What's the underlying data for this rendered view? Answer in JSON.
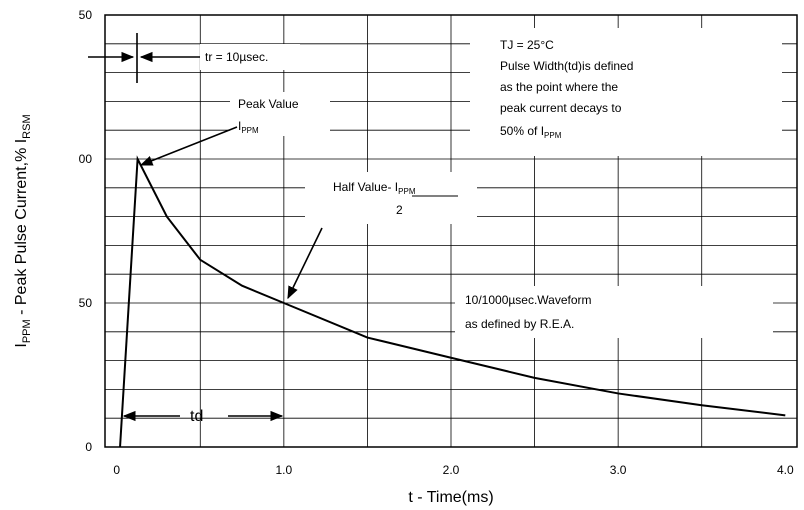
{
  "chart_data": {
    "type": "line",
    "xlabel": "t - Time(ms)",
    "ylabel": [
      "I",
      "PPM",
      " - Peak Pulse Current,% I",
      "RSM"
    ],
    "series": [
      {
        "color": "#000000",
        "x": [
          0.02,
          0.125,
          0.3,
          0.5,
          0.75,
          1.0,
          1.5,
          2.0,
          2.5,
          3.0,
          3.5,
          4.0
        ],
        "values": [
          0,
          100,
          80,
          65,
          56,
          50,
          38,
          31,
          24,
          18.6,
          14.5,
          11
        ]
      }
    ],
    "xlim": [
      -0.07,
      4.07
    ],
    "xticks": [
      0,
      {
        "value": 1,
        "label": "1.0"
      },
      {
        "value": 2,
        "label": "2.0"
      },
      {
        "value": 3,
        "label": "3.0"
      },
      {
        "value": 4,
        "label": "4.0"
      }
    ],
    "ylim": [
      0,
      150
    ],
    "yticks": [
      0,
      {
        "value": 50,
        "label": "50"
      },
      {
        "value": 100,
        "label": "00"
      },
      {
        "value": 150,
        "label": "50"
      }
    ],
    "grid": true,
    "annotations": {
      "tr": "tr = 10µsec.",
      "note": [
        "TJ = 25°C",
        "Pulse Width(td)is defined",
        "as the point where the",
        "peak current decays to",
        "50% of I"
      ],
      "note_sub": "PPM",
      "peak": "Peak Value",
      "peak_i": "I",
      "peak_sub": "PPM",
      "half": "Half Value- I",
      "half_sub": "PPM",
      "half_den": "2",
      "wave": [
        "10/1000µsec.Waveform",
        "as defined by R.E.A."
      ],
      "td": "td"
    }
  }
}
